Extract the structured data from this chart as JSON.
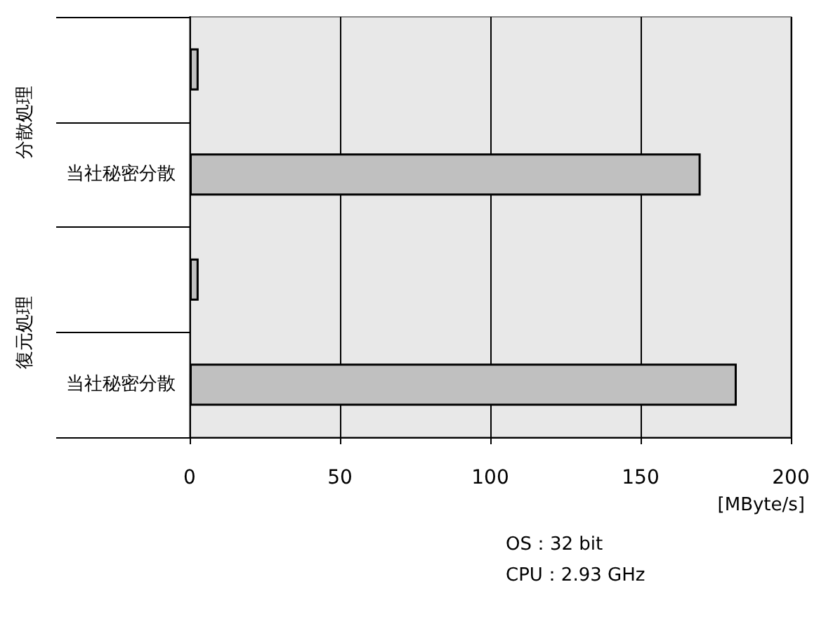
{
  "chart_data": {
    "type": "bar",
    "orientation": "horizontal",
    "categories": [
      null,
      "当社秘密分散",
      null,
      "当社秘密分散"
    ],
    "values": [
      3,
      170,
      3,
      182
    ],
    "color": "#c0c0c0",
    "xlim": [
      0,
      200
    ],
    "xticks": [
      0,
      50,
      100,
      150,
      200
    ],
    "xlabel": "[MByte/s]",
    "grid": "x",
    "annotations": [
      "分散処理",
      "復元処理",
      "OS：32 bit",
      "CPU：2.93 GHz"
    ]
  }
}
